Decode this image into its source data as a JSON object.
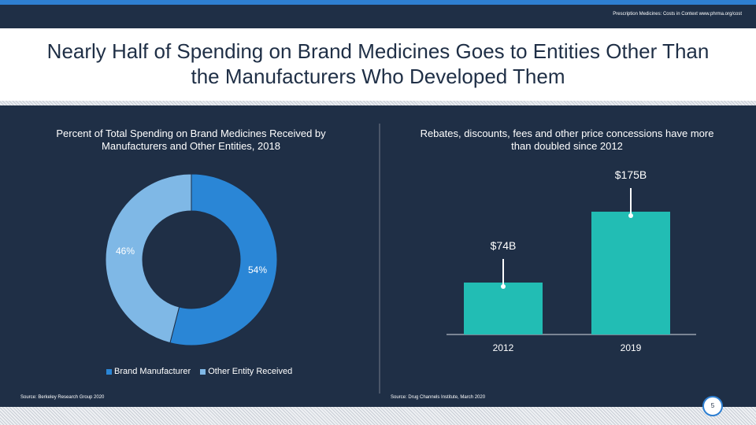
{
  "header": {
    "note": "Prescription Medicines: Costs in Context  www.phrma.org/cost"
  },
  "slide_title": "Nearly Half of Spending on Brand Medicines Goes to Entities Other Than the Manufacturers Who Developed Them",
  "left_panel": {
    "title": "Percent of Total Spending on Brand Medicines Received by Manufacturers and Other Entities, 2018",
    "source": "Source: Berkeley Research Group 2020"
  },
  "right_panel": {
    "title": "Rebates, discounts, fees and other price concessions have more than doubled since 2012",
    "source": "Source: Drug Channels Institute, March 2020"
  },
  "page_number": "5",
  "colors": {
    "background": "#1f2f46",
    "brand_manufacturer": "#2a86d6",
    "other_entity": "#7fb8e6",
    "bar": "#22bdb4"
  },
  "chart_data": [
    {
      "type": "pie",
      "title": "Percent of Total Spending on Brand Medicines Received by Manufacturers and Other Entities, 2018",
      "series": [
        {
          "name": "Brand Manufacturer",
          "value": 54,
          "label": "54%",
          "color": "#2a86d6"
        },
        {
          "name": "Other Entity Received",
          "value": 46,
          "label": "46%",
          "color": "#7fb8e6"
        }
      ],
      "legend": [
        "Brand Manufacturer",
        "Other Entity Received"
      ],
      "legend_position": "bottom"
    },
    {
      "type": "bar",
      "title": "Rebates, discounts, fees and other price concessions have more than doubled since 2012",
      "categories": [
        "2012",
        "2019"
      ],
      "values": [
        74,
        175
      ],
      "labels": [
        "$74B",
        "$175B"
      ],
      "unit": "$B",
      "ylim": [
        0,
        240
      ],
      "grid": false
    }
  ]
}
